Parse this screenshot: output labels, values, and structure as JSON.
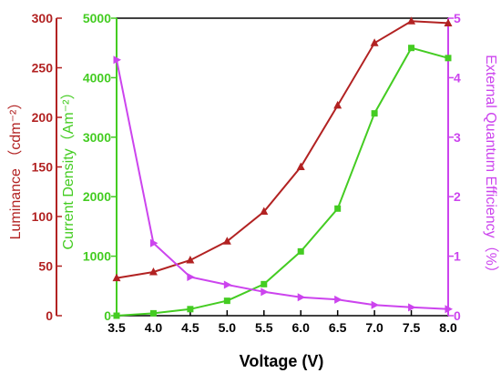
{
  "colors": {
    "luminance": "#b22222",
    "current_density": "#44cc22",
    "eqe": "#cc44ee",
    "frame": "#000000"
  },
  "chart_data": {
    "type": "line",
    "title": "",
    "xlabel": "Voltage (V)",
    "x": [
      3.5,
      4.0,
      4.5,
      5.0,
      5.5,
      6.0,
      6.5,
      7.0,
      7.5,
      8.0
    ],
    "xlim": [
      3.5,
      8.0
    ],
    "xticks": [
      "3.5",
      "4.0",
      "4.5",
      "5.0",
      "5.5",
      "6.0",
      "6.5",
      "7.0",
      "7.5",
      "8.0"
    ],
    "grid": false,
    "legend": "none",
    "axes": {
      "luminance": {
        "label": "Luminance （cdm⁻²）",
        "ylim": [
          0,
          300
        ],
        "ticks": [
          "0",
          "50",
          "100",
          "150",
          "200",
          "250",
          "300"
        ],
        "side": "left-outer"
      },
      "current_density": {
        "label": "Current Density（Am⁻²）",
        "ylim": [
          0,
          5000
        ],
        "ticks": [
          "0",
          "1000",
          "2000",
          "3000",
          "4000",
          "5000"
        ],
        "side": "left-inner"
      },
      "eqe": {
        "label": "External Quantum Efficiency（%）",
        "ylim": [
          0,
          5
        ],
        "ticks": [
          "0",
          "1",
          "2",
          "3",
          "4",
          "5"
        ],
        "side": "right"
      }
    },
    "series": [
      {
        "key": "luminance",
        "axis": "luminance",
        "marker": "triangle",
        "values": [
          38,
          44,
          56,
          75,
          105,
          150,
          212,
          275,
          297,
          295
        ]
      },
      {
        "key": "current_density",
        "axis": "current_density",
        "marker": "square",
        "values": [
          0,
          40,
          110,
          250,
          530,
          1080,
          1800,
          3400,
          4500,
          4330
        ]
      },
      {
        "key": "eqe",
        "axis": "eqe",
        "marker": "triangle-right",
        "values": [
          4.3,
          1.22,
          0.65,
          0.52,
          0.4,
          0.31,
          0.27,
          0.18,
          0.14,
          0.11
        ]
      }
    ]
  }
}
